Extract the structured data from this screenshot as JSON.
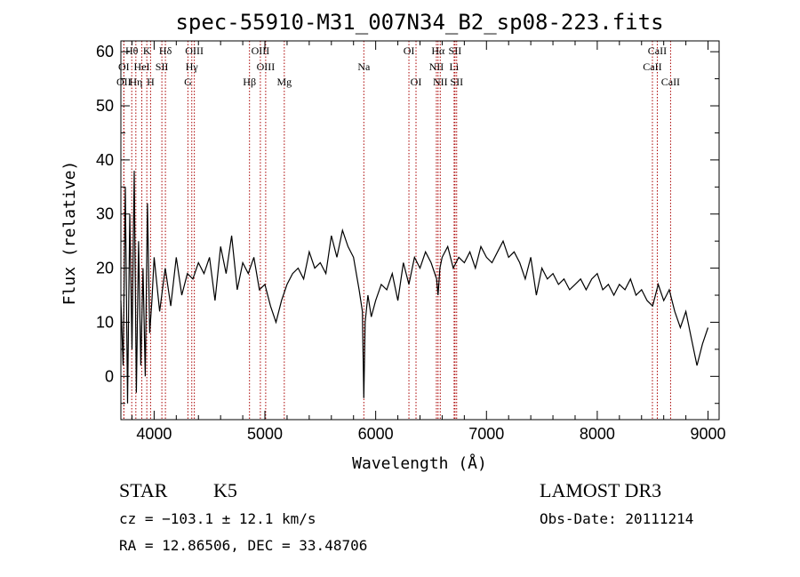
{
  "chart_data": {
    "type": "line",
    "title": "spec-55910-M31_007N34_B2_sp08-223.fits",
    "xlabel": "Wavelength (Å)",
    "ylabel": "Flux (relative)",
    "xlim": [
      3700,
      9100
    ],
    "ylim": [
      -8,
      62
    ],
    "xticks": [
      4000,
      5000,
      6000,
      7000,
      8000,
      9000
    ],
    "yticks": [
      0,
      10,
      20,
      30,
      40,
      50,
      60
    ],
    "series": [
      {
        "name": "spectrum",
        "x": [
          3700,
          3720,
          3740,
          3760,
          3780,
          3800,
          3820,
          3840,
          3860,
          3880,
          3900,
          3920,
          3940,
          3960,
          3980,
          4000,
          4050,
          4100,
          4150,
          4200,
          4250,
          4300,
          4350,
          4400,
          4450,
          4500,
          4550,
          4600,
          4650,
          4700,
          4750,
          4800,
          4850,
          4900,
          4950,
          5000,
          5050,
          5100,
          5150,
          5200,
          5250,
          5300,
          5350,
          5400,
          5450,
          5500,
          5550,
          5600,
          5650,
          5700,
          5750,
          5800,
          5850,
          5880,
          5893,
          5905,
          5930,
          5960,
          6000,
          6050,
          6100,
          6150,
          6200,
          6250,
          6300,
          6350,
          6400,
          6450,
          6500,
          6550,
          6563,
          6580,
          6600,
          6650,
          6700,
          6750,
          6800,
          6850,
          6900,
          6950,
          7000,
          7050,
          7100,
          7150,
          7200,
          7250,
          7300,
          7350,
          7400,
          7450,
          7500,
          7550,
          7600,
          7650,
          7700,
          7750,
          7800,
          7850,
          7900,
          7950,
          8000,
          8050,
          8100,
          8150,
          8200,
          8250,
          8300,
          8350,
          8400,
          8450,
          8500,
          8550,
          8600,
          8650,
          8700,
          8750,
          8800,
          8850,
          8900,
          8950,
          9000
        ],
        "y": [
          14,
          2,
          35,
          -5,
          30,
          5,
          38,
          -3,
          25,
          2,
          20,
          0,
          32,
          8,
          14,
          22,
          12,
          20,
          13,
          22,
          15,
          19,
          18,
          21,
          19,
          22,
          14,
          24,
          19,
          26,
          16,
          21,
          19,
          22,
          16,
          17,
          13,
          10,
          14,
          17,
          19,
          20,
          18,
          23,
          20,
          21,
          19,
          26,
          22,
          27,
          24,
          22,
          16,
          12,
          -4,
          10,
          15,
          11,
          14,
          17,
          16,
          19,
          14,
          21,
          17,
          22,
          20,
          23,
          21,
          18,
          15,
          20,
          22,
          24,
          20,
          22,
          21,
          23,
          20,
          24,
          22,
          21,
          23,
          25,
          22,
          23,
          21,
          18,
          22,
          15,
          20,
          18,
          19,
          17,
          18,
          16,
          17,
          18,
          16,
          18,
          19,
          16,
          17,
          15,
          17,
          16,
          18,
          15,
          16,
          14,
          13,
          17,
          14,
          16,
          12,
          9,
          12,
          7,
          2,
          6,
          9
        ]
      }
    ],
    "lines": [
      {
        "label": "Hθ",
        "x": 3798,
        "row": 0
      },
      {
        "label": "K",
        "x": 3934,
        "row": 0
      },
      {
        "label": "Hδ",
        "x": 4102,
        "row": 0
      },
      {
        "label": "OIII",
        "x": 4363,
        "row": 0
      },
      {
        "label": "OIII",
        "x": 4959,
        "row": 0
      },
      {
        "label": "OI",
        "x": 6300,
        "row": 0
      },
      {
        "label": "Hα",
        "x": 6563,
        "row": 0
      },
      {
        "label": "SII",
        "x": 6716,
        "row": 0
      },
      {
        "label": "CaII",
        "x": 8542,
        "row": 0
      },
      {
        "label": "OI",
        "x": 3727,
        "row": 1
      },
      {
        "label": "HeI",
        "x": 3889,
        "row": 1
      },
      {
        "label": "SII",
        "x": 4070,
        "row": 1
      },
      {
        "label": "Hγ",
        "x": 4340,
        "row": 1
      },
      {
        "label": "OIII",
        "x": 5007,
        "row": 1
      },
      {
        "label": "Na",
        "x": 5893,
        "row": 1
      },
      {
        "label": "NII",
        "x": 6548,
        "row": 1
      },
      {
        "label": "Li",
        "x": 6708,
        "row": 1
      },
      {
        "label": "CaII",
        "x": 8498,
        "row": 1
      },
      {
        "label": "OII",
        "x": 3727,
        "row": 2
      },
      {
        "label": "Hη",
        "x": 3835,
        "row": 2
      },
      {
        "label": "H",
        "x": 3968,
        "row": 2
      },
      {
        "label": "G",
        "x": 4305,
        "row": 2
      },
      {
        "label": "Hβ",
        "x": 4861,
        "row": 2
      },
      {
        "label": "Mg",
        "x": 5175,
        "row": 2
      },
      {
        "label": "OI",
        "x": 6364,
        "row": 2
      },
      {
        "label": "NII",
        "x": 6583,
        "row": 2
      },
      {
        "label": "SII",
        "x": 6731,
        "row": 2
      },
      {
        "label": "CaII",
        "x": 8662,
        "row": 2
      }
    ]
  },
  "info": {
    "object_type": "STAR",
    "subclass": "K5",
    "survey": "LAMOST DR3",
    "cz": "cz = −103.1 ± 12.1 km/s",
    "obs_date": "Obs-Date: 20111214",
    "coords": "RA =  12.86506, DEC =  33.48706"
  },
  "colors": {
    "line_marker": "#aa0000",
    "spectrum": "#000000"
  }
}
